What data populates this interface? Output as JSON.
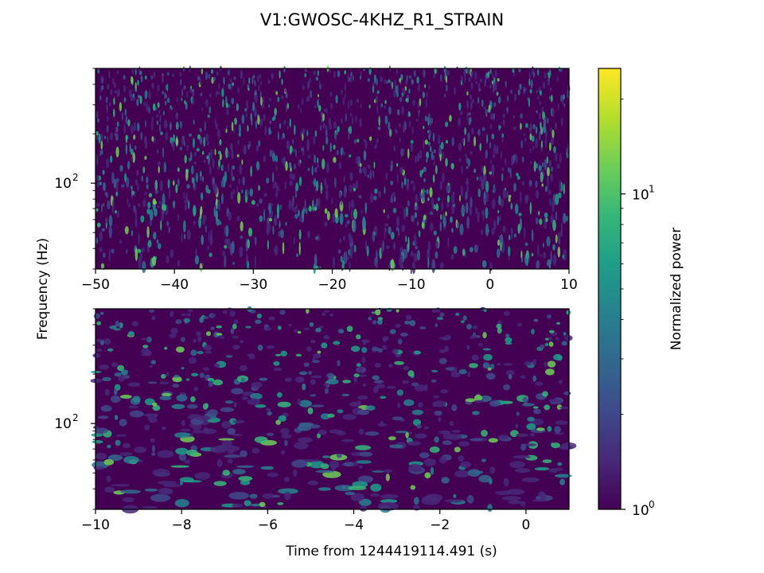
{
  "figure": {
    "title": "V1:GWOSC-4KHZ_R1_STRAIN",
    "ylabel": "Frequency (Hz)",
    "xlabel": "Time from 1244419114.491 (s)"
  },
  "colors": {
    "viridis": [
      "#440154",
      "#482878",
      "#3e4a89",
      "#31688e",
      "#26828e",
      "#1f9e89",
      "#35b779",
      "#6ece58",
      "#b5de2b",
      "#fde725"
    ]
  },
  "chart_data": [
    {
      "type": "heatmap",
      "name": "qtransform-wide",
      "x_range": [
        -50,
        10
      ],
      "x_ticks": [
        -50,
        -40,
        -30,
        -20,
        -10,
        0,
        10
      ],
      "x_tick_labels": [
        "−50",
        "−40",
        "−30",
        "−20",
        "−10",
        "0",
        "10"
      ],
      "y_scale": "log",
      "y_range": [
        30,
        500
      ],
      "y_major_ticks": [
        100
      ],
      "y_tick_labels": [
        "10",
        "2"
      ],
      "z_range": [
        1,
        25
      ],
      "colormap": "viridis"
    },
    {
      "type": "heatmap",
      "name": "qtransform-zoom",
      "x_range": [
        -10,
        1
      ],
      "x_ticks": [
        -10,
        -8,
        -6,
        -4,
        -2,
        0
      ],
      "x_tick_labels": [
        "−10",
        "−8",
        "−6",
        "−4",
        "−2",
        "0"
      ],
      "y_scale": "log",
      "y_range": [
        30,
        500
      ],
      "y_major_ticks": [
        100
      ],
      "y_tick_labels": [
        "10",
        "2"
      ],
      "z_range": [
        1,
        25
      ],
      "colormap": "viridis"
    }
  ],
  "colorbar": {
    "label": "Normalized power",
    "scale": "log",
    "range": [
      1,
      25
    ],
    "ticks": [
      {
        "value": 1,
        "base": "10",
        "exp": "0"
      },
      {
        "value": 10,
        "base": "10",
        "exp": "1"
      }
    ]
  }
}
